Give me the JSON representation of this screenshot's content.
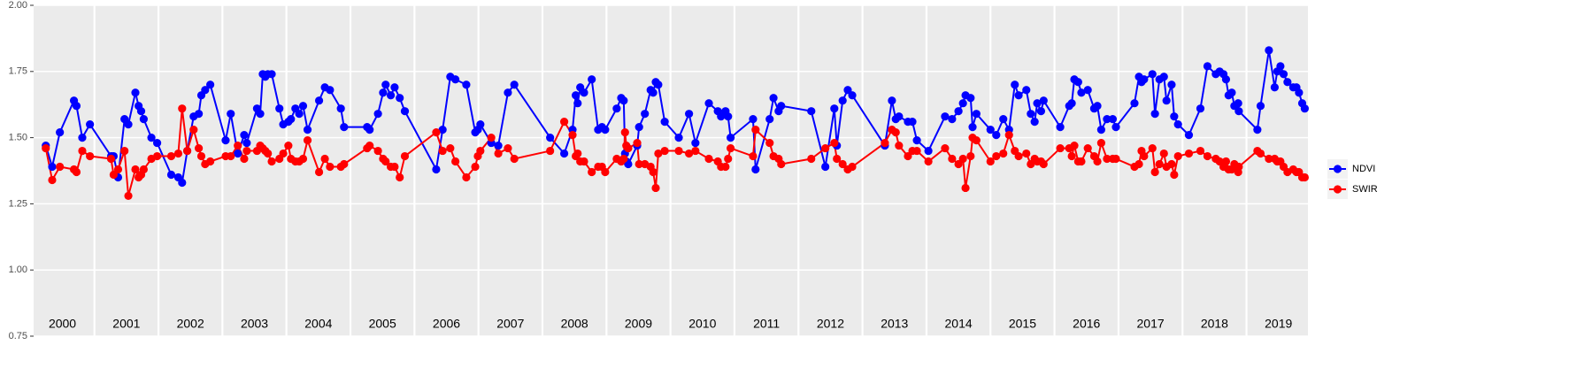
{
  "chart_data": {
    "type": "line",
    "x": [
      2000.24,
      2000.34,
      2000.46,
      2000.68,
      2000.72,
      2000.81,
      2000.93,
      2001.26,
      2001.3,
      2001.37,
      2001.47,
      2001.53,
      2001.64,
      2001.69,
      2001.73,
      2001.77,
      2001.89,
      2001.98,
      2002.2,
      2002.31,
      2002.37,
      2002.45,
      2002.55,
      2002.63,
      2002.67,
      2002.73,
      2002.81,
      2003.05,
      2003.13,
      2003.24,
      2003.34,
      2003.38,
      2003.54,
      2003.59,
      2003.63,
      2003.67,
      2003.71,
      2003.77,
      2003.89,
      2003.95,
      2004.03,
      2004.07,
      2004.14,
      2004.2,
      2004.26,
      2004.33,
      2004.51,
      2004.6,
      2004.68,
      2004.85,
      2004.9,
      2005.26,
      2005.3,
      2005.43,
      2005.51,
      2005.55,
      2005.63,
      2005.69,
      2005.77,
      2005.85,
      2006.34,
      2006.44,
      2006.56,
      2006.64,
      2006.81,
      2006.95,
      2006.99,
      2007.03,
      2007.2,
      2007.31,
      2007.46,
      2007.56,
      2008.12,
      2008.34,
      2008.47,
      2008.52,
      2008.55,
      2008.59,
      2008.65,
      2008.77,
      2008.87,
      2008.93,
      2008.98,
      2009.16,
      2009.23,
      2009.27,
      2009.29,
      2009.31,
      2009.34,
      2009.48,
      2009.51,
      2009.6,
      2009.69,
      2009.73,
      2009.77,
      2009.81,
      2009.91,
      2010.13,
      2010.29,
      2010.39,
      2010.6,
      2010.74,
      2010.79,
      2010.86,
      2010.9,
      2010.94,
      2011.29,
      2011.33,
      2011.55,
      2011.61,
      2011.69,
      2011.73,
      2012.2,
      2012.42,
      2012.56,
      2012.6,
      2012.69,
      2012.77,
      2012.84,
      2013.35,
      2013.46,
      2013.52,
      2013.57,
      2013.71,
      2013.78,
      2013.85,
      2014.03,
      2014.29,
      2014.4,
      2014.5,
      2014.57,
      2014.61,
      2014.69,
      2014.72,
      2014.78,
      2015.0,
      2015.09,
      2015.2,
      2015.29,
      2015.38,
      2015.44,
      2015.56,
      2015.63,
      2015.69,
      2015.73,
      2015.79,
      2015.83,
      2016.09,
      2016.23,
      2016.27,
      2016.31,
      2016.37,
      2016.42,
      2016.52,
      2016.62,
      2016.67,
      2016.73,
      2016.82,
      2016.91,
      2016.96,
      2017.25,
      2017.32,
      2017.36,
      2017.4,
      2017.53,
      2017.57,
      2017.64,
      2017.71,
      2017.75,
      2017.83,
      2017.87,
      2017.93,
      2018.1,
      2018.28,
      2018.39,
      2018.52,
      2018.58,
      2018.64,
      2018.68,
      2018.72,
      2018.77,
      2018.81,
      2018.87,
      2018.88,
      2019.17,
      2019.22,
      2019.35,
      2019.44,
      2019.48,
      2019.53,
      2019.58,
      2019.64,
      2019.73,
      2019.78,
      2019.82,
      2019.87,
      2019.91
    ],
    "series": [
      {
        "name": "NDVI",
        "color": "#0000FF",
        "values": [
          1.47,
          1.39,
          1.52,
          1.64,
          1.62,
          1.5,
          1.55,
          1.43,
          1.43,
          1.35,
          1.57,
          1.55,
          1.67,
          1.62,
          1.6,
          1.57,
          1.5,
          1.48,
          1.36,
          1.35,
          1.33,
          1.45,
          1.58,
          1.59,
          1.66,
          1.68,
          1.7,
          1.49,
          1.59,
          1.44,
          1.51,
          1.48,
          1.61,
          1.59,
          1.74,
          1.73,
          1.74,
          1.74,
          1.61,
          1.55,
          1.56,
          1.57,
          1.61,
          1.59,
          1.62,
          1.53,
          1.64,
          1.69,
          1.68,
          1.61,
          1.54,
          1.54,
          1.53,
          1.59,
          1.67,
          1.7,
          1.66,
          1.69,
          1.65,
          1.6,
          1.38,
          1.53,
          1.73,
          1.72,
          1.7,
          1.52,
          1.53,
          1.55,
          1.48,
          1.47,
          1.67,
          1.7,
          1.5,
          1.44,
          1.53,
          1.66,
          1.63,
          1.69,
          1.67,
          1.72,
          1.53,
          1.54,
          1.53,
          1.61,
          1.65,
          1.64,
          1.44,
          1.41,
          1.4,
          1.47,
          1.54,
          1.59,
          1.68,
          1.67,
          1.71,
          1.7,
          1.56,
          1.5,
          1.59,
          1.48,
          1.63,
          1.6,
          1.58,
          1.6,
          1.58,
          1.5,
          1.57,
          1.38,
          1.57,
          1.65,
          1.6,
          1.62,
          1.6,
          1.39,
          1.61,
          1.47,
          1.64,
          1.68,
          1.66,
          1.47,
          1.64,
          1.57,
          1.58,
          1.56,
          1.56,
          1.49,
          1.45,
          1.58,
          1.57,
          1.6,
          1.63,
          1.66,
          1.65,
          1.54,
          1.59,
          1.53,
          1.51,
          1.57,
          1.53,
          1.7,
          1.66,
          1.68,
          1.59,
          1.56,
          1.63,
          1.6,
          1.64,
          1.54,
          1.62,
          1.63,
          1.72,
          1.71,
          1.67,
          1.68,
          1.61,
          1.62,
          1.53,
          1.57,
          1.57,
          1.54,
          1.63,
          1.73,
          1.71,
          1.72,
          1.74,
          1.59,
          1.72,
          1.73,
          1.64,
          1.7,
          1.58,
          1.55,
          1.51,
          1.61,
          1.77,
          1.74,
          1.75,
          1.74,
          1.72,
          1.66,
          1.67,
          1.62,
          1.63,
          1.6,
          1.53,
          1.62,
          1.83,
          1.69,
          1.75,
          1.77,
          1.74,
          1.71,
          1.69,
          1.69,
          1.67,
          1.63,
          1.61
        ]
      },
      {
        "name": "SWIR",
        "color": "#FF0000",
        "values": [
          1.46,
          1.34,
          1.39,
          1.38,
          1.37,
          1.45,
          1.43,
          1.42,
          1.36,
          1.38,
          1.45,
          1.28,
          1.38,
          1.35,
          1.36,
          1.38,
          1.42,
          1.43,
          1.43,
          1.44,
          1.61,
          1.45,
          1.53,
          1.46,
          1.43,
          1.4,
          1.41,
          1.43,
          1.43,
          1.47,
          1.42,
          1.45,
          1.45,
          1.47,
          1.46,
          1.45,
          1.44,
          1.41,
          1.42,
          1.44,
          1.47,
          1.42,
          1.41,
          1.41,
          1.42,
          1.49,
          1.37,
          1.42,
          1.39,
          1.39,
          1.4,
          1.46,
          1.47,
          1.45,
          1.42,
          1.41,
          1.39,
          1.39,
          1.35,
          1.43,
          1.52,
          1.45,
          1.46,
          1.41,
          1.35,
          1.39,
          1.43,
          1.45,
          1.5,
          1.44,
          1.46,
          1.42,
          1.45,
          1.56,
          1.51,
          1.43,
          1.44,
          1.41,
          1.41,
          1.37,
          1.39,
          1.39,
          1.37,
          1.42,
          1.41,
          1.42,
          1.52,
          1.47,
          1.46,
          1.48,
          1.4,
          1.4,
          1.39,
          1.37,
          1.31,
          1.44,
          1.45,
          1.45,
          1.44,
          1.45,
          1.42,
          1.41,
          1.39,
          1.39,
          1.42,
          1.46,
          1.43,
          1.53,
          1.48,
          1.43,
          1.42,
          1.4,
          1.42,
          1.46,
          1.48,
          1.42,
          1.4,
          1.38,
          1.39,
          1.48,
          1.53,
          1.52,
          1.47,
          1.43,
          1.45,
          1.45,
          1.41,
          1.46,
          1.42,
          1.4,
          1.42,
          1.31,
          1.43,
          1.5,
          1.49,
          1.41,
          1.43,
          1.44,
          1.51,
          1.45,
          1.43,
          1.44,
          1.4,
          1.42,
          1.41,
          1.41,
          1.4,
          1.46,
          1.46,
          1.43,
          1.47,
          1.41,
          1.41,
          1.46,
          1.43,
          1.41,
          1.48,
          1.42,
          1.42,
          1.42,
          1.39,
          1.4,
          1.45,
          1.43,
          1.46,
          1.37,
          1.4,
          1.44,
          1.39,
          1.4,
          1.36,
          1.43,
          1.44,
          1.45,
          1.43,
          1.42,
          1.41,
          1.39,
          1.41,
          1.38,
          1.38,
          1.4,
          1.37,
          1.39,
          1.45,
          1.44,
          1.42,
          1.42,
          1.41,
          1.41,
          1.39,
          1.37,
          1.38,
          1.37,
          1.37,
          1.35,
          1.35
        ]
      }
    ],
    "xlim": [
      2000.05,
      2019.96
    ],
    "xgrid": [
      2001,
      2002,
      2003,
      2004,
      2005,
      2006,
      2007,
      2008,
      2009,
      2010,
      2011,
      2012,
      2013,
      2014,
      2015,
      2016,
      2017,
      2018,
      2019
    ],
    "year_labels": [
      {
        "value": 2000.5,
        "label": "2000"
      },
      {
        "value": 2001.5,
        "label": "2001"
      },
      {
        "value": 2002.5,
        "label": "2002"
      },
      {
        "value": 2003.5,
        "label": "2003"
      },
      {
        "value": 2004.5,
        "label": "2004"
      },
      {
        "value": 2005.5,
        "label": "2005"
      },
      {
        "value": 2006.5,
        "label": "2006"
      },
      {
        "value": 2007.5,
        "label": "2007"
      },
      {
        "value": 2008.5,
        "label": "2008"
      },
      {
        "value": 2009.5,
        "label": "2009"
      },
      {
        "value": 2010.5,
        "label": "2010"
      },
      {
        "value": 2011.5,
        "label": "2011"
      },
      {
        "value": 2012.5,
        "label": "2012"
      },
      {
        "value": 2013.5,
        "label": "2013"
      },
      {
        "value": 2014.5,
        "label": "2014"
      },
      {
        "value": 2015.5,
        "label": "2015"
      },
      {
        "value": 2016.5,
        "label": "2016"
      },
      {
        "value": 2017.5,
        "label": "2017"
      },
      {
        "value": 2018.5,
        "label": "2018"
      },
      {
        "value": 2019.5,
        "label": "2019"
      }
    ],
    "ylim": [
      0.75,
      2.0
    ],
    "yticks": [
      {
        "value": 0.75,
        "label": "0.75"
      },
      {
        "value": 1.0,
        "label": "1.00"
      },
      {
        "value": 1.25,
        "label": "1.25"
      },
      {
        "value": 1.5,
        "label": "1.50"
      },
      {
        "value": 1.75,
        "label": "1.75"
      },
      {
        "value": 2.0,
        "label": "2.00"
      }
    ],
    "grid": true,
    "legend": "right"
  }
}
